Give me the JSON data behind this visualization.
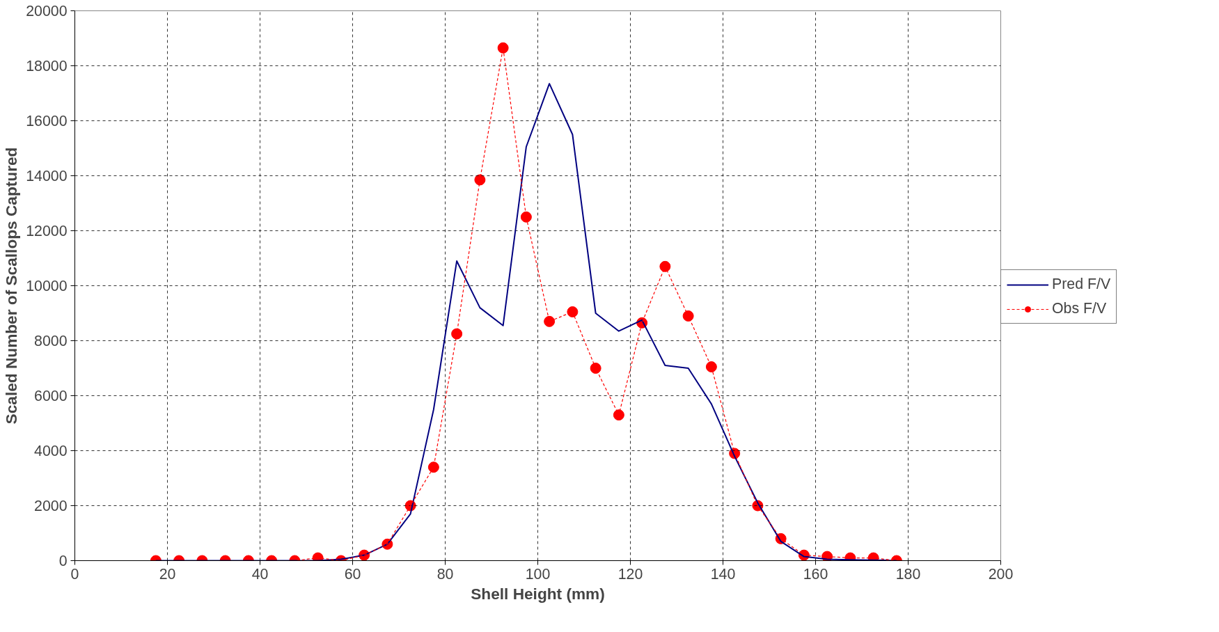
{
  "chart_data": {
    "type": "line",
    "xlabel": "Shell Height (mm)",
    "ylabel": "Scaled Number of Scallops Captured",
    "x": [
      17.5,
      22.5,
      27.5,
      32.5,
      37.5,
      42.5,
      47.5,
      52.5,
      57.5,
      62.5,
      67.5,
      72.5,
      77.5,
      82.5,
      87.5,
      92.5,
      97.5,
      102.5,
      107.5,
      112.5,
      117.5,
      122.5,
      127.5,
      132.5,
      137.5,
      142.5,
      147.5,
      152.5,
      157.5,
      162.5,
      167.5,
      172.5,
      177.5
    ],
    "series": [
      {
        "name": "Pred F/V",
        "color": "#000080",
        "marker": "none",
        "line_style": "solid",
        "values": [
          0,
          0,
          0,
          0,
          0,
          0,
          0,
          0,
          50,
          200,
          600,
          1700,
          5500,
          10900,
          9200,
          8550,
          15050,
          17350,
          15500,
          9000,
          8350,
          8750,
          7100,
          7000,
          5700,
          3800,
          2100,
          700,
          150,
          50,
          30,
          20,
          0
        ]
      },
      {
        "name": "Obs F/V",
        "color": "#ff0000",
        "marker": "circle",
        "line_style": "dashed",
        "values": [
          0,
          0,
          0,
          0,
          0,
          0,
          0,
          100,
          0,
          200,
          600,
          2000,
          3400,
          8250,
          13850,
          18650,
          12500,
          8700,
          9050,
          7000,
          5300,
          8650,
          10700,
          8900,
          7050,
          3900,
          2000,
          800,
          200,
          150,
          100,
          100,
          0
        ]
      }
    ],
    "xlim": [
      0,
      200
    ],
    "xticks": [
      0,
      20,
      40,
      60,
      80,
      100,
      120,
      140,
      160,
      180,
      200
    ],
    "ylim": [
      0,
      20000
    ],
    "yticks": [
      0,
      2000,
      4000,
      6000,
      8000,
      10000,
      12000,
      14000,
      16000,
      18000,
      20000
    ],
    "grid": true,
    "legend": "right"
  }
}
